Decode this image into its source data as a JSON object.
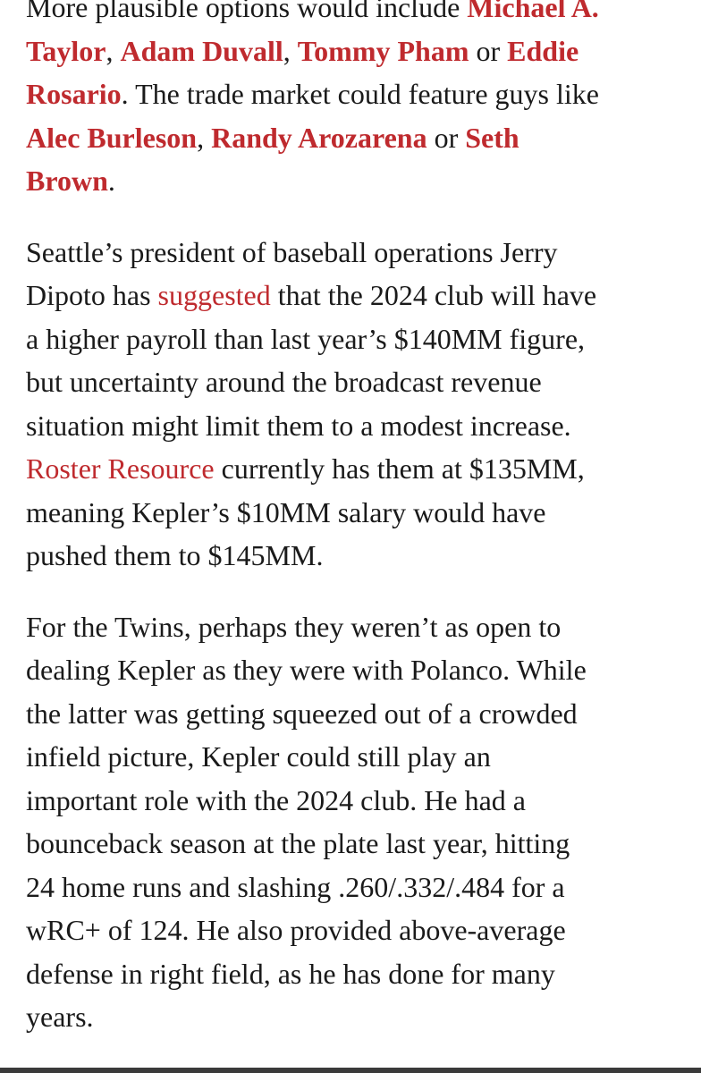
{
  "colors": {
    "link": "#bf2a2e",
    "text": "#1a1a1a",
    "bottom_bar": "#3a3a3a"
  },
  "paragraphs": [
    [
      {
        "t": "More plausible options would include "
      },
      {
        "t": "Michael A.",
        "link": true,
        "bold": true
      },
      {
        "br": true
      },
      {
        "t": "Taylor",
        "link": true,
        "bold": true
      },
      {
        "t": ", "
      },
      {
        "t": "Adam Duvall",
        "link": true,
        "bold": true
      },
      {
        "t": ", "
      },
      {
        "t": "Tommy Pham",
        "link": true,
        "bold": true
      },
      {
        "t": " or "
      },
      {
        "t": "Eddie",
        "link": true,
        "bold": true
      },
      {
        "br": true
      },
      {
        "t": "Rosario",
        "link": true,
        "bold": true
      },
      {
        "t": ". The trade market could feature guys like"
      },
      {
        "br": true
      },
      {
        "t": "Alec Burleson",
        "link": true,
        "bold": true
      },
      {
        "t": ", "
      },
      {
        "t": "Randy Arozarena",
        "link": true,
        "bold": true
      },
      {
        "t": " or "
      },
      {
        "t": "Seth",
        "link": true,
        "bold": true
      },
      {
        "br": true
      },
      {
        "t": "Brown",
        "link": true,
        "bold": true
      },
      {
        "t": "."
      }
    ],
    [
      {
        "t": "Seattle’s president of baseball operations Jerry"
      },
      {
        "br": true
      },
      {
        "t": "Dipoto has "
      },
      {
        "t": "suggested",
        "link": true
      },
      {
        "t": " that the 2024 club will have"
      },
      {
        "br": true
      },
      {
        "t": "a higher payroll than last year’s $140MM figure,"
      },
      {
        "br": true
      },
      {
        "t": "but uncertainty around the broadcast revenue"
      },
      {
        "br": true
      },
      {
        "t": "situation might limit them to a modest increase."
      },
      {
        "br": true
      },
      {
        "t": "Roster Resource",
        "link": true
      },
      {
        "t": " currently has them at $135MM,"
      },
      {
        "br": true
      },
      {
        "t": "meaning Kepler’s $10MM salary would have"
      },
      {
        "br": true
      },
      {
        "t": "pushed them to $145MM."
      }
    ],
    [
      {
        "t": "For the Twins, perhaps they weren’t as open to"
      },
      {
        "br": true
      },
      {
        "t": "dealing Kepler as they were with Polanco. While"
      },
      {
        "br": true
      },
      {
        "t": "the latter was getting squeezed out of a crowded"
      },
      {
        "br": true
      },
      {
        "t": "infield picture, Kepler could still play an"
      },
      {
        "br": true
      },
      {
        "t": "important role with the 2024 club. He had a"
      },
      {
        "br": true
      },
      {
        "t": "bounceback season at the plate last year, hitting"
      },
      {
        "br": true
      },
      {
        "t": "24 home runs and slashing .260/.332/.484 for a"
      },
      {
        "br": true
      },
      {
        "t": "wRC+ of 124. He also provided above-average"
      },
      {
        "br": true
      },
      {
        "t": "defense in right field, as he has done for many"
      },
      {
        "br": true
      },
      {
        "t": "years."
      }
    ]
  ]
}
